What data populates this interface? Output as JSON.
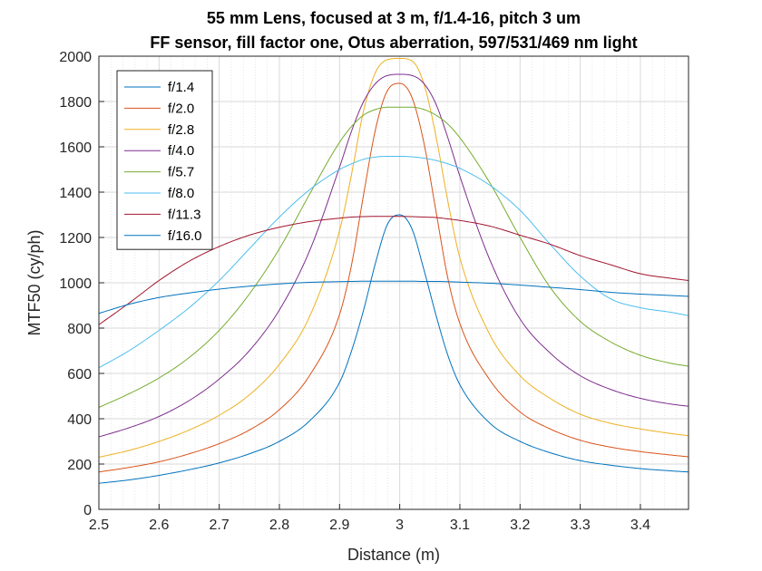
{
  "chart_data": {
    "type": "line",
    "title": "55 mm Lens, focused at 3 m, f/1.4-16, pitch 3 um",
    "subtitle": "FF sensor, fill factor one, Otus aberration, 597/531/469 nm light",
    "xlabel": "Distance (m)",
    "ylabel": "MTF50 (cy/ph)",
    "xlim": [
      2.5,
      3.48
    ],
    "ylim": [
      0,
      2000
    ],
    "xticks": [
      "2.5",
      "2.6",
      "2.7",
      "2.8",
      "2.9",
      "3",
      "3.1",
      "3.2",
      "3.3",
      "3.4"
    ],
    "yticks": [
      "0",
      "200",
      "400",
      "600",
      "800",
      "1000",
      "1200",
      "1400",
      "1600",
      "1800",
      "2000"
    ],
    "grid": true,
    "minor_grid_x": true,
    "legend_position": "top-left",
    "x": [
      2.5,
      2.55,
      2.6,
      2.65,
      2.7,
      2.75,
      2.8,
      2.85,
      2.9,
      2.92,
      2.94,
      2.96,
      2.98,
      3.0,
      3.02,
      3.04,
      3.06,
      3.08,
      3.1,
      3.15,
      3.2,
      3.25,
      3.3,
      3.35,
      3.4,
      3.45,
      3.48
    ],
    "series": [
      {
        "name": "f/1.4",
        "color": "#0072BD",
        "values": [
          115,
          130,
          150,
          175,
          205,
          245,
          300,
          390,
          560,
          700,
          880,
          1090,
          1260,
          1300,
          1240,
          1060,
          860,
          680,
          550,
          380,
          300,
          250,
          215,
          195,
          180,
          170,
          165
        ]
      },
      {
        "name": "f/2.0",
        "color": "#D95319",
        "values": [
          165,
          185,
          210,
          245,
          290,
          350,
          440,
          590,
          860,
          1080,
          1390,
          1680,
          1850,
          1880,
          1820,
          1620,
          1320,
          1020,
          820,
          570,
          430,
          355,
          305,
          275,
          255,
          240,
          232
        ]
      },
      {
        "name": "f/2.8",
        "color": "#EDB120",
        "values": [
          230,
          260,
          300,
          350,
          415,
          505,
          640,
          850,
          1230,
          1480,
          1760,
          1930,
          1985,
          1990,
          1980,
          1880,
          1650,
          1360,
          1110,
          770,
          590,
          490,
          420,
          380,
          355,
          335,
          325
        ]
      },
      {
        "name": "f/4.0",
        "color": "#7E2F8E",
        "values": [
          320,
          360,
          410,
          480,
          575,
          700,
          880,
          1140,
          1510,
          1670,
          1800,
          1880,
          1915,
          1920,
          1915,
          1880,
          1790,
          1640,
          1470,
          1100,
          840,
          690,
          590,
          530,
          490,
          465,
          455
        ]
      },
      {
        "name": "f/5.7",
        "color": "#77AC30",
        "values": [
          450,
          510,
          580,
          670,
          790,
          950,
          1150,
          1390,
          1620,
          1690,
          1740,
          1765,
          1775,
          1775,
          1775,
          1765,
          1740,
          1700,
          1640,
          1440,
          1200,
          980,
          830,
          740,
          680,
          645,
          632
        ]
      },
      {
        "name": "f/8.0",
        "color": "#4DBEEE",
        "values": [
          625,
          700,
          790,
          890,
          1010,
          1150,
          1290,
          1410,
          1500,
          1525,
          1545,
          1555,
          1558,
          1558,
          1556,
          1550,
          1540,
          1525,
          1505,
          1430,
          1320,
          1170,
          1030,
          930,
          890,
          870,
          855
        ]
      },
      {
        "name": "f/11.3",
        "color": "#A2142F",
        "values": [
          815,
          910,
          1010,
          1095,
          1160,
          1210,
          1245,
          1270,
          1285,
          1290,
          1292,
          1293,
          1293,
          1293,
          1292,
          1290,
          1288,
          1282,
          1275,
          1250,
          1210,
          1170,
          1120,
          1080,
          1040,
          1020,
          1010
        ]
      },
      {
        "name": "f/16.0",
        "color": "#0072BD",
        "values": [
          865,
          905,
          935,
          955,
          972,
          985,
          995,
          1002,
          1005,
          1006,
          1007,
          1007,
          1007,
          1007,
          1007,
          1006,
          1006,
          1005,
          1003,
          998,
          990,
          980,
          970,
          958,
          950,
          944,
          940
        ]
      }
    ]
  }
}
